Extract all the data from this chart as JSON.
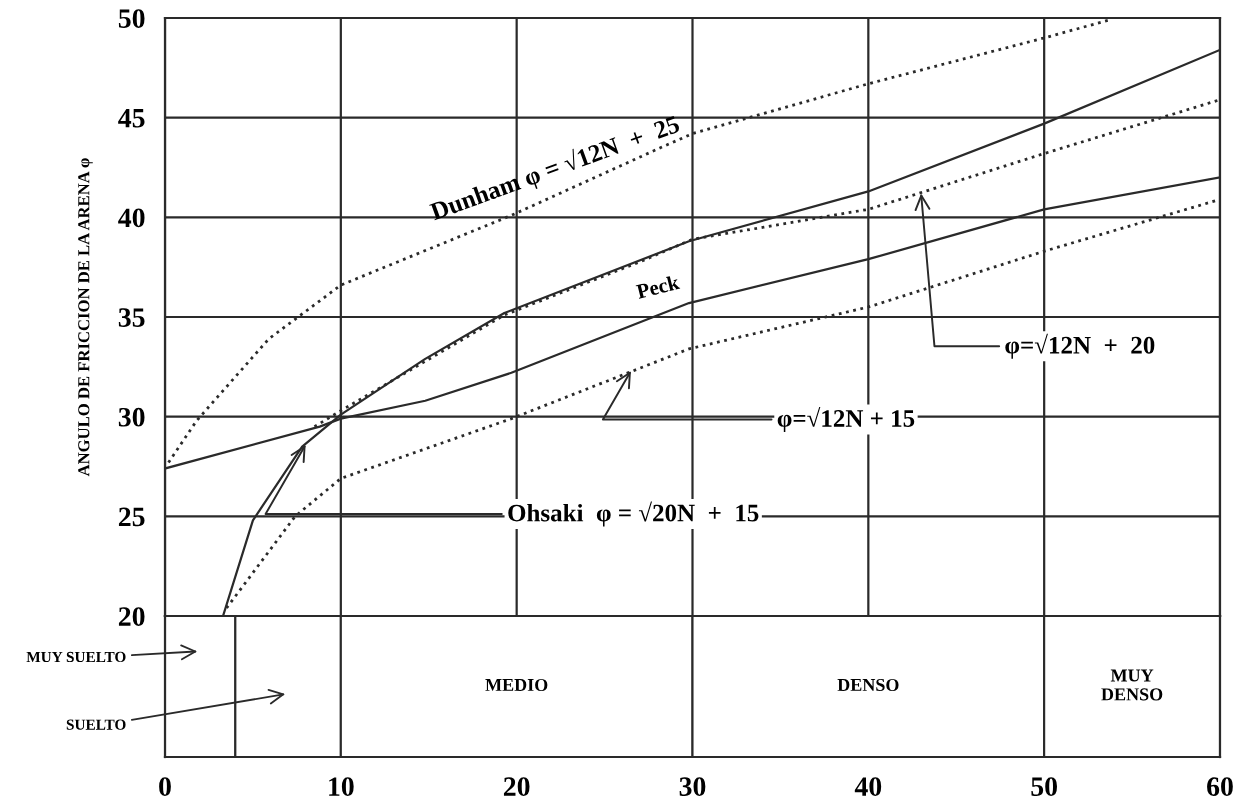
{
  "chart_data": [
    {
      "type": "line",
      "ylabel": "ANGULO DE FRICCION DE LA ARENA φ",
      "xlim": [
        0,
        60
      ],
      "xticks": [
        0,
        10,
        20,
        30,
        40,
        50,
        60
      ],
      "ylim": [
        20,
        50
      ],
      "yticks": [
        20,
        25,
        30,
        35,
        40,
        45,
        50
      ],
      "tick_labels": "y",
      "grid": true,
      "marker": "none",
      "series": [
        {
          "color": "#2a2a2a",
          "line_style": "dotted",
          "x": [
            0.2,
            1.8,
            5.9,
            10,
            19.7,
            28.2,
            30,
            40,
            50,
            53.7
          ],
          "values": [
            27.7,
            29.8,
            33.9,
            36.6,
            40.1,
            43.5,
            44.2,
            46.7,
            49.0,
            49.9
          ]
        },
        {
          "color": "#2a2a2a",
          "line_style": "solid",
          "x": [
            3.3,
            5,
            7.8,
            10,
            14.8,
            19.3,
            29.8,
            40,
            50,
            60
          ],
          "values": [
            20,
            24.8,
            28.5,
            30.1,
            32.9,
            35.2,
            38.8,
            41.3,
            44.7,
            48.4
          ]
        },
        {
          "color": "#2a2a2a",
          "line_style": "solid",
          "x": [
            0,
            8.8,
            10,
            14.8,
            19.7,
            29.8,
            40,
            50,
            60
          ],
          "values": [
            27.4,
            29.5,
            29.9,
            30.8,
            32.2,
            35.7,
            37.9,
            40.4,
            42.0
          ]
        },
        {
          "color": "#2a2a2a",
          "line_style": "dotted",
          "x": [
            8.5,
            10,
            19.3,
            27.1,
            30,
            40,
            50,
            60
          ],
          "values": [
            29.5,
            30.3,
            35.1,
            37.8,
            38.9,
            40.4,
            43.2,
            45.9
          ]
        },
        {
          "color": "#2a2a2a",
          "line_style": "dotted",
          "x": [
            3.5,
            7.4,
            10,
            19.7,
            29.8,
            40,
            50,
            60
          ],
          "values": [
            20.4,
            25.0,
            26.9,
            29.9,
            33.4,
            35.5,
            38.3,
            40.9
          ]
        }
      ],
      "annotations": [
        {
          "text": "Dunham φ = √12N  +  25",
          "x": 14,
          "y": 38.2
        },
        {
          "text": "Peck",
          "x": 27,
          "y": 35
        },
        {
          "text": "φ=√12N  +  20",
          "x": 43,
          "y": 41.2
        },
        {
          "text": "φ=√12N + 15",
          "x": 26.5,
          "y": 32.3
        },
        {
          "text": "Ohsaki  φ = √20N  +  15",
          "x": 8,
          "y": 28.6
        }
      ]
    },
    {
      "type": "bar",
      "orientation": "horizontal",
      "stacked": true,
      "categories": [
        null
      ],
      "xlim": [
        0,
        60
      ],
      "xticks": [
        0,
        10,
        20,
        30,
        40,
        50,
        60
      ],
      "series": [
        {
          "name": "MUY SUELTO",
          "color": "#ffffff",
          "values": [
            4
          ]
        },
        {
          "name": "SUELTO",
          "color": "#ffffff",
          "values": [
            6
          ]
        },
        {
          "name": "MEDIO",
          "color": "#ffffff",
          "values": [
            20
          ]
        },
        {
          "name": "DENSO",
          "color": "#ffffff",
          "values": [
            20
          ]
        },
        {
          "name": "MUY\nDENSO",
          "color": "#ffffff",
          "values": [
            10
          ]
        }
      ]
    }
  ]
}
